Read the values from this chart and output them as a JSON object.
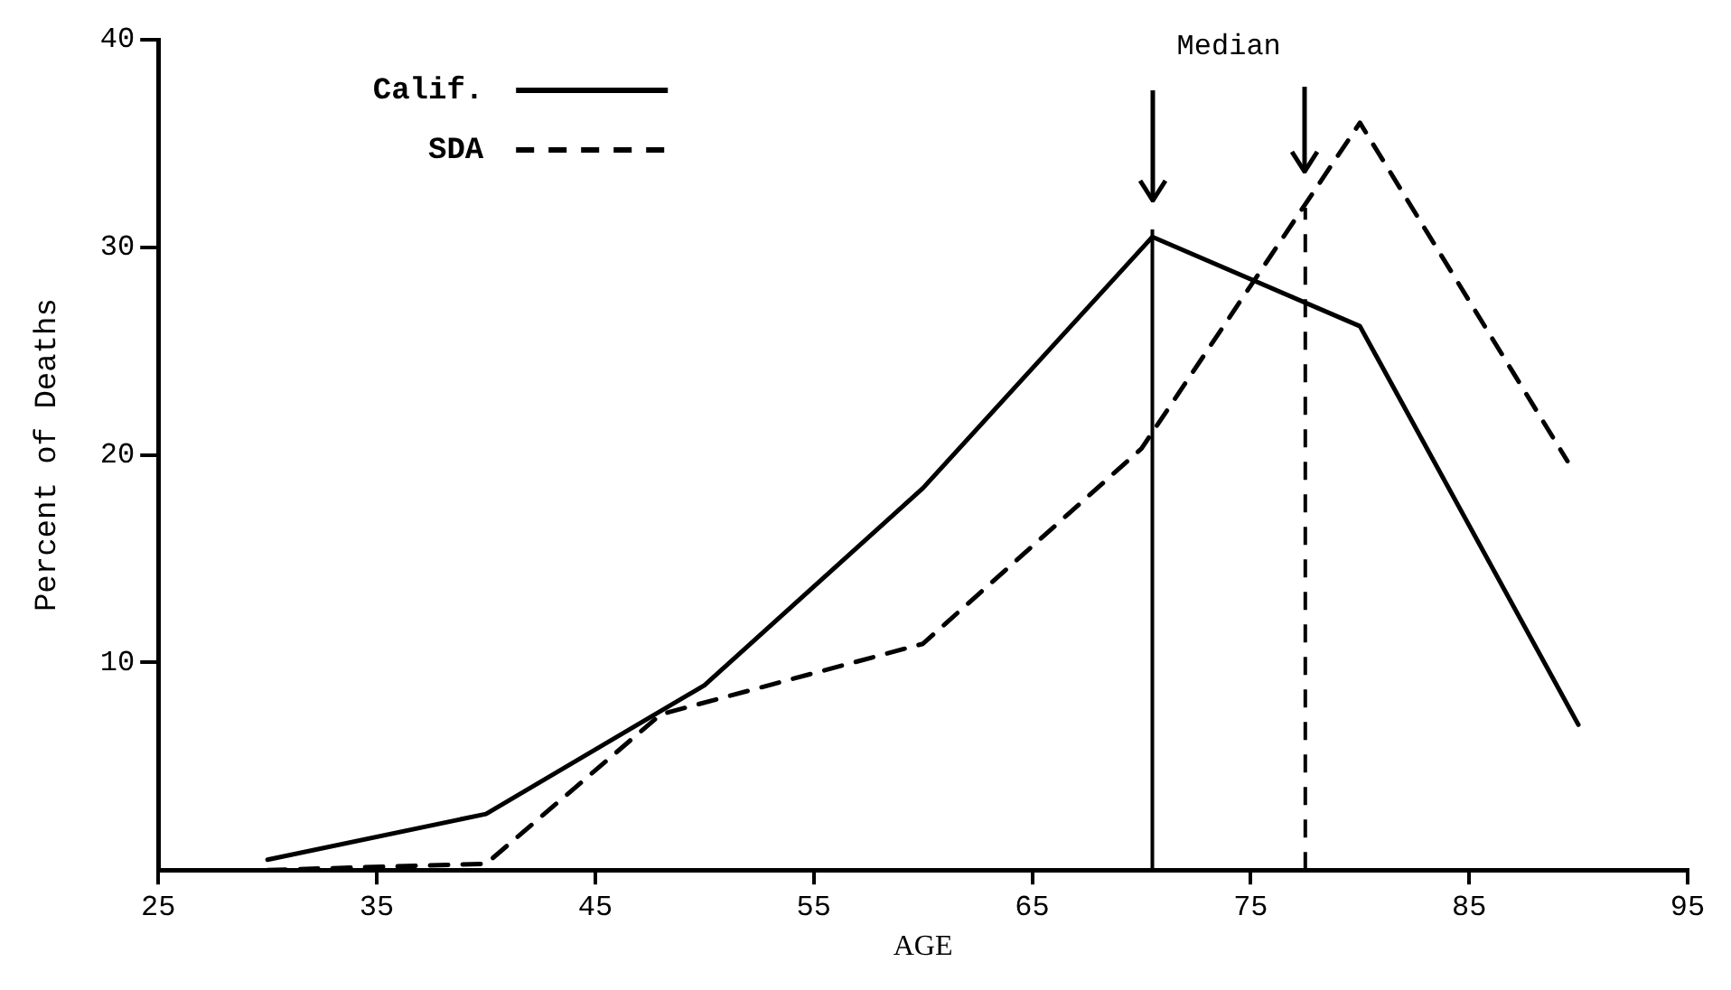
{
  "chart_data": {
    "type": "line",
    "xlabel": "AGE",
    "ylabel": "Percent of Deaths",
    "series": [
      {
        "name": "Calif.",
        "color": "#000000",
        "line_style": "solid",
        "x": [
          30,
          40,
          50,
          60,
          70.5,
          80,
          90
        ],
        "values": [
          0.5,
          2.7,
          8.9,
          18.4,
          30.5,
          26.2,
          7.0
        ]
      },
      {
        "name": "SDA",
        "color": "#000000",
        "line_style": "dashed",
        "x": [
          30,
          40,
          48,
          60,
          70,
          80,
          89.5
        ],
        "values": [
          0,
          0.3,
          7.5,
          10.9,
          20.3,
          36,
          19.7
        ]
      }
    ],
    "xlim": [
      25,
      95
    ],
    "xticks": [
      25,
      35,
      45,
      55,
      65,
      75,
      85,
      95
    ],
    "ylim": [
      0,
      40
    ],
    "yticks": [
      10,
      20,
      30,
      40
    ],
    "legend": "top left",
    "marker": "none",
    "ref_lines": [
      {
        "axis": "x",
        "value": 70.5,
        "line_style": "solid",
        "color": "#000000"
      },
      {
        "axis": "x",
        "value": 77.5,
        "line_style": "dashed",
        "color": "#000000"
      }
    ],
    "annotations": [
      "Median"
    ]
  }
}
